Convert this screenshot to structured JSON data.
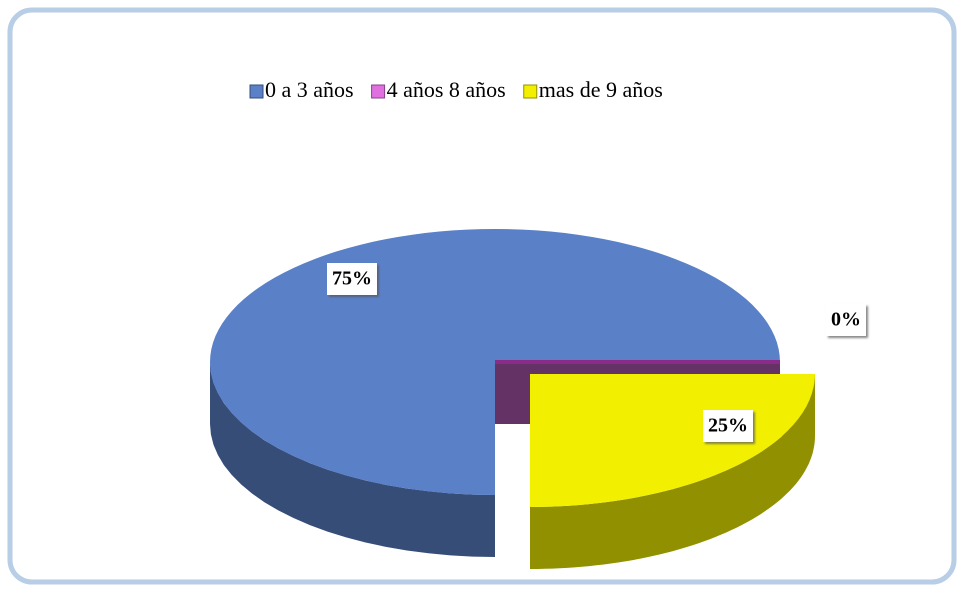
{
  "chart_data": {
    "type": "pie",
    "categories": [
      "0 a 3 años",
      "4 años 8 años",
      "mas de 9 años"
    ],
    "values": [
      75,
      0,
      25
    ],
    "value_labels": [
      "75%",
      "0%",
      "25%"
    ],
    "colors": [
      "#5a80c8",
      "#e070e0",
      "#f2f000"
    ],
    "legend": "top"
  }
}
